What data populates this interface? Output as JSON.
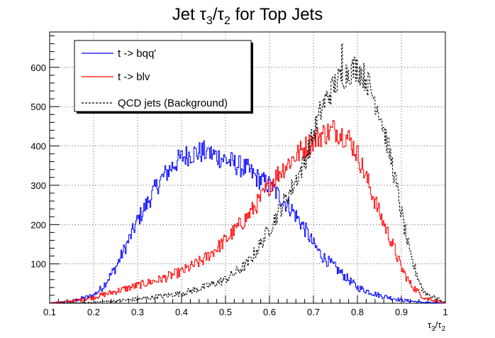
{
  "chart_data": {
    "type": "line",
    "title": "Jet τ₃/τ₂ for Top Jets",
    "title_parts": {
      "base": "Jet ",
      "tau": "τ",
      "sub3": "3",
      "slash": "/",
      "sub2": "2",
      "rest": " for Top Jets"
    },
    "xlabel": "τ₃/τ₂",
    "xlabel_parts": {
      "tau": "τ",
      "sub3": "3",
      "slash": "/",
      "sub2": "2"
    },
    "ylabel": "",
    "xlim": [
      0.1,
      1.0
    ],
    "ylim": [
      0,
      690
    ],
    "grid": true,
    "legend_position": "top-left",
    "x_ticks": [
      0.1,
      0.2,
      0.3,
      0.4,
      0.5,
      0.6,
      0.7,
      0.8,
      0.9,
      1.0
    ],
    "x_tick_labels": [
      "0.1",
      "0.2",
      "0.3",
      "0.4",
      "0.5",
      "0.6",
      "0.7",
      "0.8",
      "0.9",
      "1"
    ],
    "y_ticks": [
      100,
      200,
      300,
      400,
      500,
      600
    ],
    "y_tick_labels": [
      "100",
      "200",
      "300",
      "400",
      "500",
      "600"
    ],
    "series": [
      {
        "name": "t -> bqq'",
        "color": "#0000ff",
        "style": "solid",
        "x": [
          0.1,
          0.15,
          0.2,
          0.22,
          0.25,
          0.28,
          0.3,
          0.32,
          0.35,
          0.38,
          0.4,
          0.42,
          0.45,
          0.48,
          0.5,
          0.52,
          0.55,
          0.57,
          0.6,
          0.62,
          0.65,
          0.68,
          0.7,
          0.72,
          0.75,
          0.78,
          0.8,
          0.85,
          0.9,
          0.95,
          1.0
        ],
        "values": [
          0,
          5,
          20,
          40,
          90,
          160,
          210,
          250,
          310,
          350,
          370,
          380,
          385,
          375,
          365,
          355,
          340,
          320,
          300,
          275,
          240,
          190,
          150,
          120,
          90,
          60,
          40,
          20,
          8,
          2,
          0
        ],
        "peaks": {
          "x": [
            0.46
          ],
          "values": [
            395
          ]
        }
      },
      {
        "name": "t -> blv",
        "color": "#ff0000",
        "style": "solid",
        "x": [
          0.1,
          0.15,
          0.2,
          0.25,
          0.3,
          0.35,
          0.4,
          0.45,
          0.5,
          0.55,
          0.58,
          0.6,
          0.62,
          0.65,
          0.68,
          0.7,
          0.72,
          0.75,
          0.78,
          0.8,
          0.82,
          0.85,
          0.88,
          0.9,
          0.92,
          0.95,
          1.0
        ],
        "values": [
          0,
          5,
          15,
          30,
          45,
          60,
          80,
          110,
          160,
          220,
          265,
          300,
          330,
          365,
          395,
          415,
          430,
          440,
          420,
          380,
          320,
          230,
          150,
          90,
          50,
          15,
          0
        ],
        "peaks": {
          "x": [
            0.745
          ],
          "values": [
            465
          ]
        }
      },
      {
        "name": "QCD jets (Background)",
        "color": "#000000",
        "style": "dashed",
        "x": [
          0.1,
          0.2,
          0.3,
          0.4,
          0.45,
          0.5,
          0.55,
          0.58,
          0.6,
          0.62,
          0.65,
          0.68,
          0.7,
          0.72,
          0.75,
          0.78,
          0.8,
          0.82,
          0.85,
          0.88,
          0.9,
          0.92,
          0.95,
          1.0
        ],
        "values": [
          0,
          2,
          10,
          25,
          40,
          60,
          100,
          150,
          190,
          230,
          290,
          360,
          430,
          500,
          560,
          590,
          600,
          570,
          490,
          350,
          230,
          120,
          30,
          0
        ],
        "peaks": {
          "x": [
            0.765
          ],
          "values": [
            660
          ]
        }
      }
    ]
  }
}
